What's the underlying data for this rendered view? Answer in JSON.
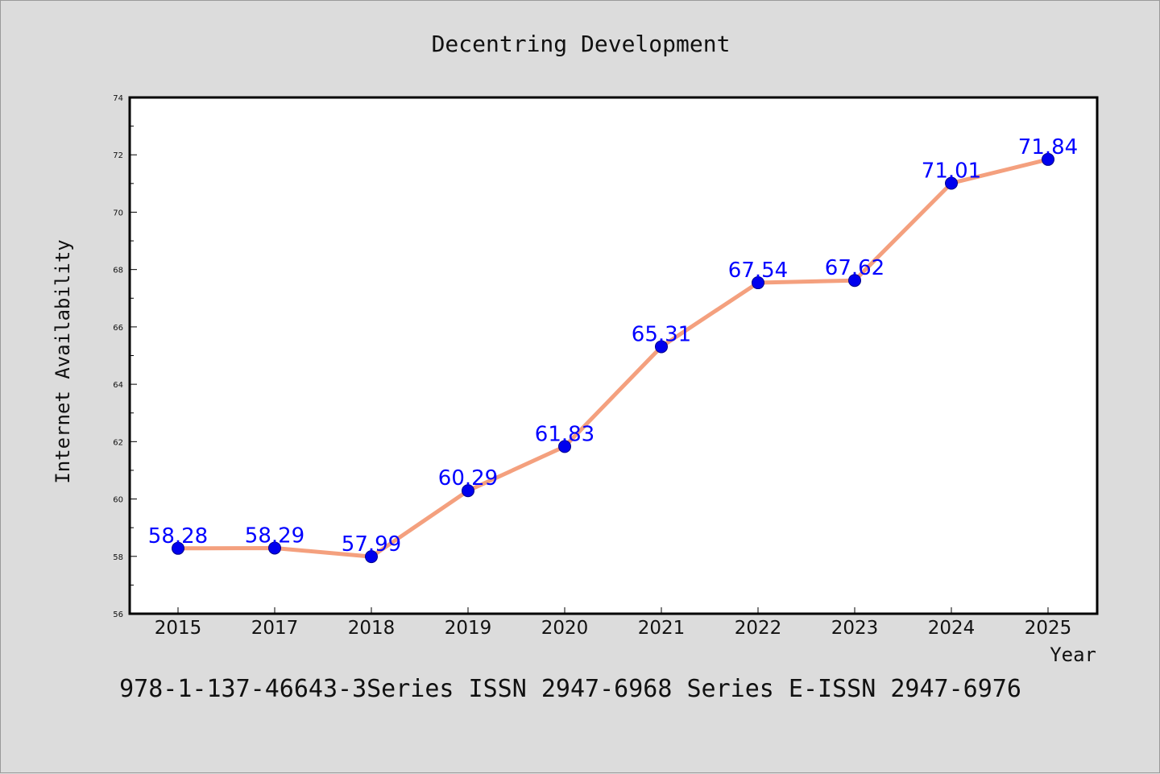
{
  "chart_data": {
    "type": "line",
    "title": "Decentring Development",
    "xlabel": "Year",
    "ylabel": "Internet Availability",
    "categories": [
      "2015",
      "2017",
      "2018",
      "2019",
      "2020",
      "2021",
      "2022",
      "2023",
      "2024",
      "2025"
    ],
    "series": [
      {
        "values": [
          58.28,
          58.29,
          57.99,
          60.29,
          61.83,
          65.31,
          67.54,
          67.62,
          71.01,
          71.84
        ],
        "data_labels": [
          "58.28",
          "58.29",
          "57.99",
          "60.29",
          "61.83",
          "65.31",
          "67.54",
          "67.62",
          "71.01",
          "71.84"
        ],
        "line_color": "#f4a07e",
        "marker_color": "#0000ee"
      }
    ],
    "ylim": [
      56,
      74
    ],
    "y_ticks": [
      "56",
      "58",
      "60",
      "62",
      "64",
      "66",
      "68",
      "70",
      "72",
      "74"
    ],
    "grid": false,
    "legend": "none"
  },
  "footer": "978-1-137-46643-3Series ISSN 2947-6968 Series E-ISSN 2947-6976",
  "colors": {
    "background": "#dcdcdc",
    "plot_background": "#ffffff",
    "axis": "#000000"
  }
}
